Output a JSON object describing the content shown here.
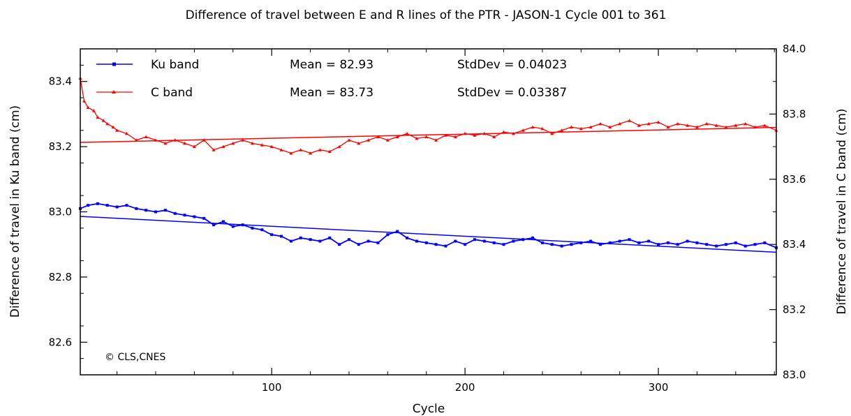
{
  "chart_data": {
    "type": "line",
    "title": "Difference of travel between E and R lines of the PTR - JASON-1 Cycle 001 to 361",
    "xlabel": "Cycle",
    "ylabel_left": "Difference of travel in Ku band (cm)",
    "ylabel_right": "Difference of travel in C band (cm)",
    "xlim": [
      1,
      361
    ],
    "ylim_left": [
      82.5,
      83.5
    ],
    "ylim_right": [
      83.0,
      84.0
    ],
    "x_ticks": [
      100,
      200,
      300
    ],
    "y_ticks_left": [
      "82.6",
      "82.8",
      "83.0",
      "83.2",
      "83.4"
    ],
    "y_ticks_right": [
      "83.0",
      "83.2",
      "83.4",
      "83.6",
      "83.8",
      "84.0"
    ],
    "grid": false,
    "legend_position": "top-left",
    "credit": "© CLS,CNES",
    "series": [
      {
        "name": "Ku band",
        "axis": "left",
        "color": "#0000ff",
        "marker": "square",
        "mean_label": "Mean = 82.93",
        "stddev_label": "StdDev = 0.04023",
        "trend": {
          "x": [
            1,
            361
          ],
          "y": [
            82.986,
            82.876
          ]
        },
        "x": [
          1,
          5,
          10,
          15,
          20,
          25,
          30,
          35,
          40,
          45,
          50,
          55,
          60,
          65,
          70,
          75,
          80,
          85,
          90,
          95,
          100,
          105,
          110,
          115,
          120,
          125,
          130,
          135,
          140,
          145,
          150,
          155,
          160,
          165,
          170,
          175,
          180,
          185,
          190,
          195,
          200,
          205,
          210,
          215,
          220,
          225,
          230,
          235,
          240,
          245,
          250,
          255,
          260,
          265,
          270,
          275,
          280,
          285,
          290,
          295,
          300,
          305,
          310,
          315,
          320,
          325,
          330,
          335,
          340,
          345,
          350,
          355,
          361
        ],
        "y": [
          83.01,
          83.02,
          83.025,
          83.02,
          83.015,
          83.02,
          83.01,
          83.005,
          83.0,
          83.005,
          82.995,
          82.99,
          82.985,
          82.98,
          82.96,
          82.97,
          82.955,
          82.96,
          82.95,
          82.945,
          82.93,
          82.925,
          82.91,
          82.92,
          82.915,
          82.91,
          82.92,
          82.9,
          82.915,
          82.9,
          82.91,
          82.905,
          82.93,
          82.94,
          82.92,
          82.91,
          82.905,
          82.9,
          82.895,
          82.91,
          82.9,
          82.915,
          82.91,
          82.905,
          82.9,
          82.91,
          82.915,
          82.92,
          82.905,
          82.9,
          82.895,
          82.9,
          82.905,
          82.91,
          82.9,
          82.905,
          82.91,
          82.915,
          82.905,
          82.91,
          82.9,
          82.905,
          82.9,
          82.91,
          82.905,
          82.9,
          82.895,
          82.9,
          82.905,
          82.895,
          82.9,
          82.905,
          82.89
        ]
      },
      {
        "name": "C band",
        "axis": "right",
        "color": "#ff0000",
        "marker": "triangle",
        "mean_label": "Mean = 83.73",
        "stddev_label": "StdDev = 0.03387",
        "trend": {
          "x": [
            1,
            361
          ],
          "y": [
            83.713,
            83.759
          ]
        },
        "x": [
          1,
          3,
          5,
          8,
          10,
          13,
          15,
          18,
          20,
          25,
          30,
          35,
          40,
          45,
          50,
          55,
          60,
          65,
          70,
          75,
          80,
          85,
          90,
          95,
          100,
          105,
          110,
          115,
          120,
          125,
          130,
          135,
          140,
          145,
          150,
          155,
          160,
          165,
          170,
          175,
          180,
          185,
          190,
          195,
          200,
          205,
          210,
          215,
          220,
          225,
          230,
          235,
          240,
          245,
          250,
          255,
          260,
          265,
          270,
          275,
          280,
          285,
          290,
          295,
          300,
          305,
          310,
          315,
          320,
          325,
          330,
          335,
          340,
          345,
          350,
          355,
          361
        ],
        "y": [
          83.91,
          83.84,
          83.82,
          83.81,
          83.79,
          83.78,
          83.77,
          83.76,
          83.75,
          83.74,
          83.72,
          83.73,
          83.72,
          83.71,
          83.72,
          83.71,
          83.7,
          83.72,
          83.69,
          83.7,
          83.71,
          83.72,
          83.71,
          83.705,
          83.7,
          83.69,
          83.68,
          83.69,
          83.68,
          83.69,
          83.685,
          83.7,
          83.72,
          83.71,
          83.72,
          83.73,
          83.72,
          83.73,
          83.74,
          83.725,
          83.73,
          83.72,
          83.735,
          83.73,
          83.74,
          83.735,
          83.74,
          83.73,
          83.745,
          83.74,
          83.75,
          83.76,
          83.755,
          83.74,
          83.75,
          83.76,
          83.755,
          83.76,
          83.77,
          83.76,
          83.77,
          83.78,
          83.765,
          83.77,
          83.775,
          83.76,
          83.77,
          83.765,
          83.76,
          83.77,
          83.765,
          83.76,
          83.765,
          83.77,
          83.76,
          83.765,
          83.75
        ]
      }
    ]
  }
}
